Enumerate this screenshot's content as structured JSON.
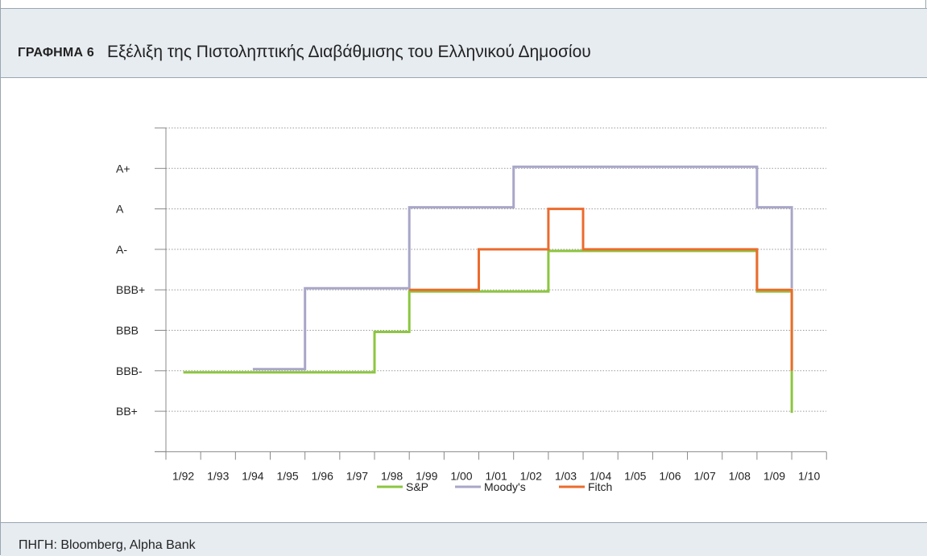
{
  "figure": {
    "label": "ΓΡΑΦΗΜΑ 6",
    "title": "Εξέλιξη της Πιστοληπτικής Διαβάθμισης του Ελληνικού Δημοσίου",
    "source": "ΠΗΓΗ: Bloomberg, Alpha Bank"
  },
  "chart_data": {
    "type": "line",
    "step": true,
    "title": "Εξέλιξη της Πιστοληπτικής Διαβάθμισης του Ελληνικού Δημοσίου",
    "xlabel": "",
    "ylabel": "",
    "x_ticks": [
      "1/92",
      "1/93",
      "1/94",
      "1/95",
      "1/96",
      "1/97",
      "1/98",
      "1/99",
      "1/00",
      "1/01",
      "1/02",
      "1/03",
      "1/04",
      "1/05",
      "1/06",
      "1/07",
      "1/08",
      "1/09",
      "1/10"
    ],
    "y_categories": [
      "BB+",
      "BBB-",
      "BBB",
      "BBB+",
      "A-",
      "A",
      "A+"
    ],
    "y_range": [
      0,
      8
    ],
    "grid": true,
    "legend": "bottom",
    "series": [
      {
        "name": "S&P",
        "color": "#8cc63f",
        "points": [
          [
            1992.5,
            2
          ],
          [
            1998.0,
            2
          ],
          [
            1998.0,
            3
          ],
          [
            1999.0,
            3
          ],
          [
            1999.0,
            4
          ],
          [
            2003.0,
            4
          ],
          [
            2003.0,
            5
          ],
          [
            2009.0,
            5
          ],
          [
            2009.0,
            4
          ],
          [
            2010.0,
            4
          ],
          [
            2010.0,
            1
          ]
        ]
      },
      {
        "name": "Moody's",
        "color": "#a8a6c8",
        "points": [
          [
            1994.5,
            2
          ],
          [
            1996.0,
            2
          ],
          [
            1996.0,
            4
          ],
          [
            1999.0,
            4
          ],
          [
            1999.0,
            6
          ],
          [
            2002.0,
            6
          ],
          [
            2002.0,
            7
          ],
          [
            2009.0,
            7
          ],
          [
            2009.0,
            6
          ],
          [
            2010.0,
            6
          ],
          [
            2010.0,
            4
          ]
        ]
      },
      {
        "name": "Fitch",
        "color": "#ec6b2d",
        "points": [
          [
            1999.0,
            4
          ],
          [
            2001.0,
            4
          ],
          [
            2001.0,
            5
          ],
          [
            2003.0,
            5
          ],
          [
            2003.0,
            6
          ],
          [
            2004.0,
            6
          ],
          [
            2004.0,
            5
          ],
          [
            2009.0,
            5
          ],
          [
            2009.0,
            4
          ],
          [
            2010.0,
            4
          ],
          [
            2010.0,
            2
          ]
        ]
      }
    ]
  }
}
